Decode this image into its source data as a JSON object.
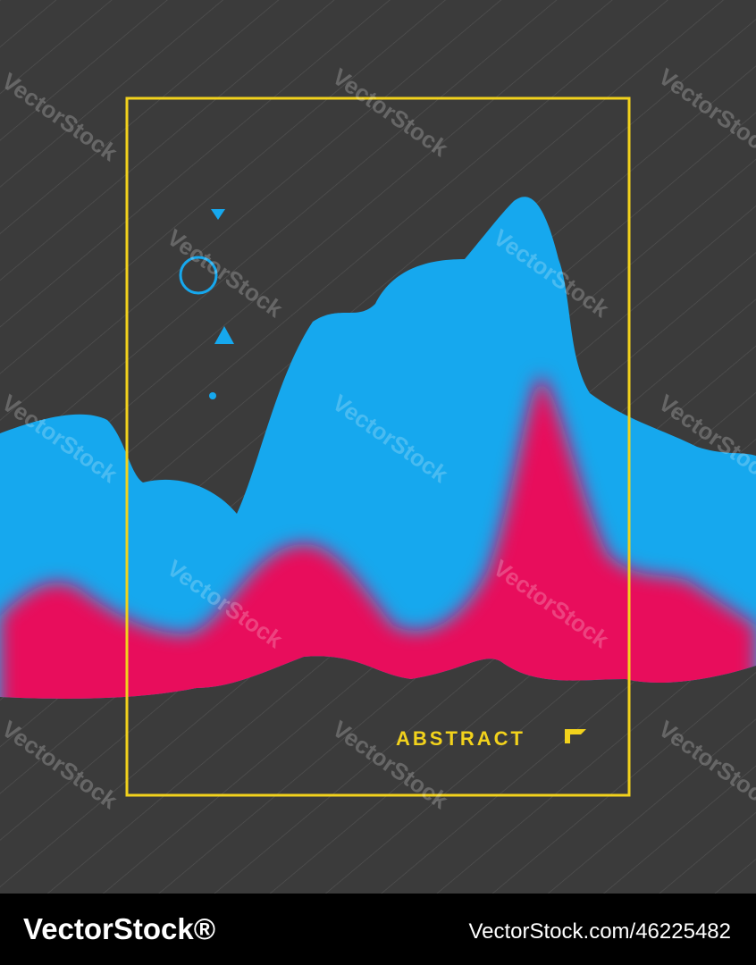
{
  "poster": {
    "title": "ABSTRACT"
  },
  "watermark": "VectorStock",
  "footer": {
    "brand": "VectorStock®",
    "id": "VectorStock.com/46225482"
  }
}
